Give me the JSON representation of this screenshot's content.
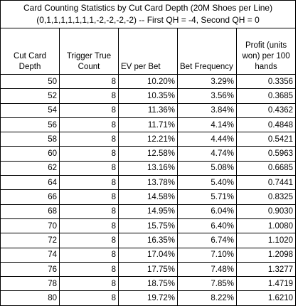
{
  "title": {
    "line1": "Card Counting Statistics by Cut Card Depth (20M Shoes per Line)",
    "line2": "(0,1,1,1,1,1,1,1,-2,-2,-2,-2) -- First QH = -4, Second QH = 0"
  },
  "headers": [
    "Cut Card Depth",
    "Trigger True Count",
    "EV per Bet",
    "Bet Frequency",
    "Profit (units won) per 100 hands"
  ],
  "rows": [
    [
      "50",
      "8",
      "10.20%",
      "3.29%",
      "0.3356"
    ],
    [
      "52",
      "8",
      "10.35%",
      "3.56%",
      "0.3685"
    ],
    [
      "54",
      "8",
      "11.36%",
      "3.84%",
      "0.4362"
    ],
    [
      "56",
      "8",
      "11.71%",
      "4.14%",
      "0.4848"
    ],
    [
      "58",
      "8",
      "12.21%",
      "4.44%",
      "0.5421"
    ],
    [
      "60",
      "8",
      "12.58%",
      "4.74%",
      "0.5963"
    ],
    [
      "62",
      "8",
      "13.16%",
      "5.08%",
      "0.6685"
    ],
    [
      "64",
      "8",
      "13.78%",
      "5.40%",
      "0.7441"
    ],
    [
      "66",
      "8",
      "14.58%",
      "5.71%",
      "0.8325"
    ],
    [
      "68",
      "8",
      "14.95%",
      "6.04%",
      "0.9030"
    ],
    [
      "70",
      "8",
      "15.75%",
      "6.40%",
      "1.0080"
    ],
    [
      "72",
      "8",
      "16.35%",
      "6.74%",
      "1.1020"
    ],
    [
      "74",
      "8",
      "17.04%",
      "7.10%",
      "1.2098"
    ],
    [
      "76",
      "8",
      "17.75%",
      "7.48%",
      "1.3277"
    ],
    [
      "78",
      "8",
      "18.75%",
      "7.85%",
      "1.4719"
    ],
    [
      "80",
      "8",
      "19.72%",
      "8.22%",
      "1.6210"
    ]
  ]
}
